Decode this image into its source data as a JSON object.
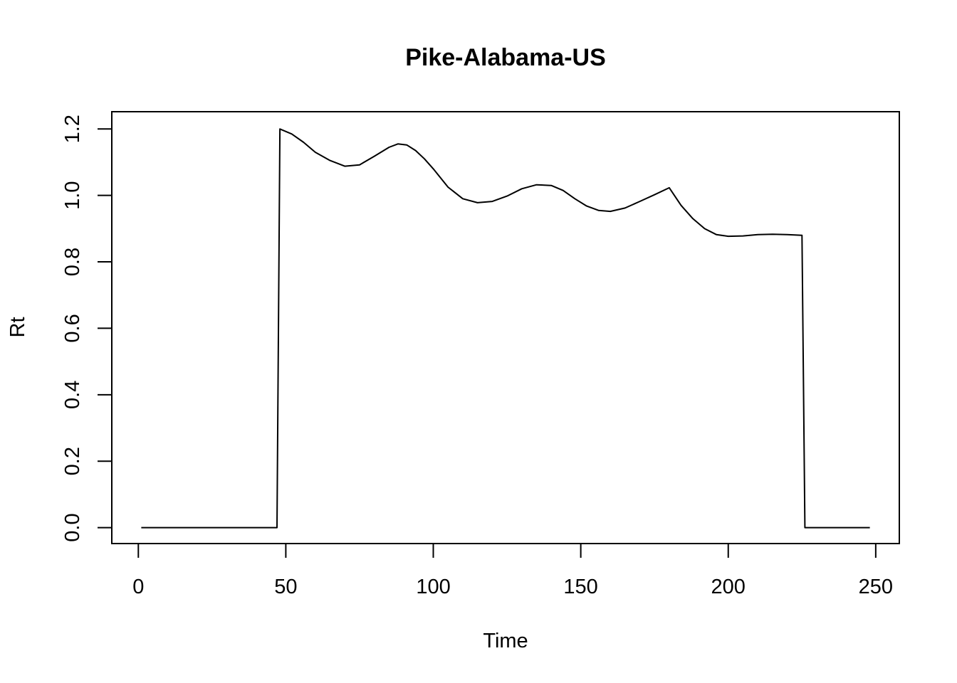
{
  "chart_data": {
    "type": "line",
    "title": "Pike-Alabama-US",
    "xlabel": "Time",
    "ylabel": "Rt",
    "xlim": [
      -9,
      258
    ],
    "ylim": [
      -0.048,
      1.252
    ],
    "xticks": [
      0,
      50,
      100,
      150,
      200,
      250
    ],
    "yticks": [
      0.0,
      0.2,
      0.4,
      0.6,
      0.8,
      1.0,
      1.2
    ],
    "xtick_labels": [
      "0",
      "50",
      "100",
      "150",
      "200",
      "250"
    ],
    "ytick_labels": [
      "0.0",
      "0.2",
      "0.4",
      "0.6",
      "0.8",
      "1.0",
      "1.2"
    ],
    "grid": false,
    "series": [
      {
        "x": [
          1,
          47,
          48,
          52,
          56,
          60,
          65,
          70,
          75,
          80,
          85,
          88,
          91,
          94,
          97,
          100,
          105,
          110,
          115,
          120,
          125,
          130,
          135,
          140,
          144,
          148,
          152,
          156,
          160,
          165,
          170,
          175,
          180,
          184,
          188,
          192,
          196,
          200,
          205,
          210,
          215,
          220,
          225,
          226,
          248
        ],
        "y": [
          0.0,
          0.0,
          1.2,
          1.185,
          1.16,
          1.13,
          1.105,
          1.088,
          1.092,
          1.118,
          1.145,
          1.155,
          1.152,
          1.135,
          1.11,
          1.08,
          1.025,
          0.99,
          0.978,
          0.982,
          0.998,
          1.02,
          1.032,
          1.03,
          1.015,
          0.99,
          0.968,
          0.955,
          0.952,
          0.962,
          0.982,
          1.002,
          1.023,
          0.97,
          0.93,
          0.9,
          0.882,
          0.877,
          0.878,
          0.882,
          0.883,
          0.882,
          0.88,
          0.0,
          0.0
        ]
      }
    ]
  }
}
